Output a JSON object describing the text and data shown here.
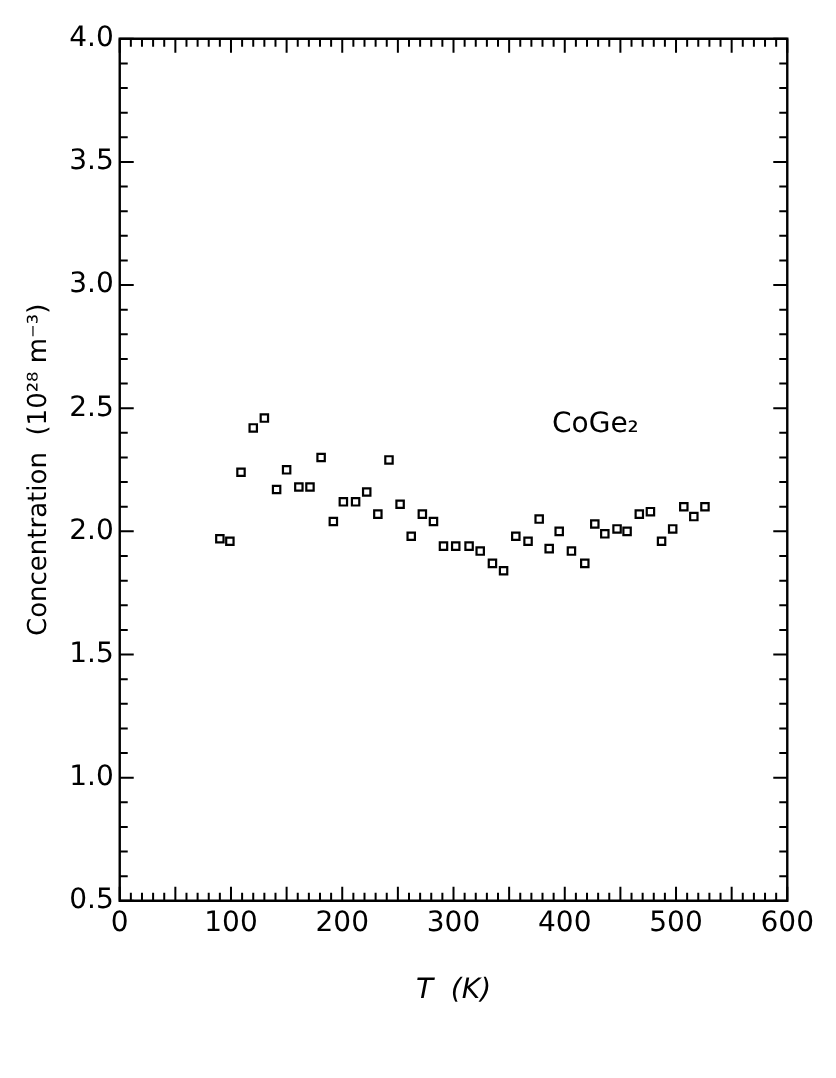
{
  "chart_data": {
    "type": "scatter",
    "xlabel": "T  (K)",
    "ylabel": "Concentration  (10²⁸ m⁻³)",
    "xlim": [
      0,
      600
    ],
    "xticks": [
      0,
      100,
      200,
      300,
      400,
      500,
      600
    ],
    "ylim": [
      0.5,
      4.0
    ],
    "yticks": [
      0.5,
      {
        "value": 1,
        "label": "1.0"
      },
      1.5,
      {
        "value": 2,
        "label": "2.0"
      },
      2.5,
      {
        "value": 3,
        "label": "3.0"
      },
      3.5,
      {
        "value": 4,
        "label": "4.0"
      }
    ],
    "grid": false,
    "legend": false,
    "marker": "square",
    "annotations": [
      "CoGe₂"
    ],
    "series": [
      {
        "color": "#000000",
        "x": [
          90,
          99,
          109,
          120,
          130,
          141,
          150,
          161,
          171,
          181,
          192,
          201,
          212,
          222,
          232,
          242,
          252,
          262,
          272,
          282,
          291,
          302,
          314,
          324,
          335,
          345,
          356,
          367,
          377,
          386,
          395,
          406,
          418,
          427,
          436,
          447,
          456,
          467,
          477,
          487,
          497,
          507,
          516,
          526
        ],
        "values": [
          1.97,
          1.96,
          2.24,
          2.42,
          2.46,
          2.17,
          2.25,
          2.18,
          2.18,
          2.3,
          2.04,
          2.12,
          2.12,
          2.16,
          2.07,
          2.29,
          2.11,
          1.98,
          2.07,
          2.04,
          1.94,
          1.94,
          1.94,
          1.92,
          1.87,
          1.84,
          1.98,
          1.96,
          2.05,
          1.93,
          2.0,
          1.92,
          1.87,
          2.03,
          1.99,
          2.01,
          2.0,
          2.07,
          2.08,
          1.96,
          2.01,
          2.1,
          2.06,
          2.1
        ]
      }
    ]
  }
}
